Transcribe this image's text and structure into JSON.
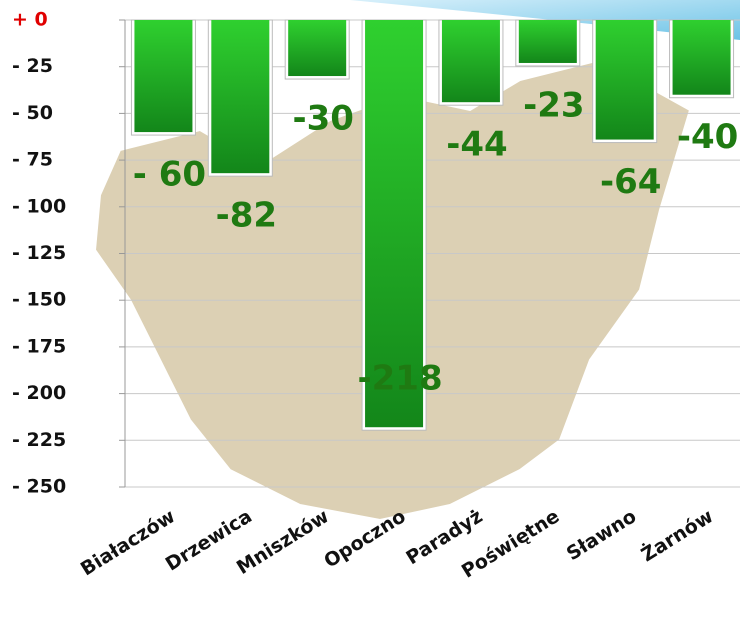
{
  "chart_data": {
    "type": "bar",
    "categories": [
      "Białaczów",
      "Drzewica",
      "Mniszków",
      "Opoczno",
      "Paradyż",
      "Poświętne",
      "Sławno",
      "Żarnów"
    ],
    "values": [
      -60,
      -82,
      -30,
      -218,
      -44,
      -23,
      -64,
      -40
    ],
    "value_labels": [
      "- 60",
      "-82",
      "-30",
      "-218",
      "-44",
      "-23",
      "-64",
      "-40"
    ],
    "color": "#22b822",
    "label_color": "#1f7a12",
    "zero_tick_color": "#e00000",
    "ylim": [
      -250,
      0
    ],
    "yticks": [
      {
        "value": 0,
        "label": "+ 0"
      },
      {
        "value": -25,
        "label": "- 25"
      },
      {
        "value": -50,
        "label": "- 50"
      },
      {
        "value": -75,
        "label": "- 75"
      },
      {
        "value": -100,
        "label": "- 100"
      },
      {
        "value": -125,
        "label": "- 125"
      },
      {
        "value": -150,
        "label": "- 150"
      },
      {
        "value": -175,
        "label": "- 175"
      },
      {
        "value": -200,
        "label": "- 200"
      },
      {
        "value": -225,
        "label": "- 225"
      },
      {
        "value": -250,
        "label": "- 250"
      }
    ],
    "grid": true
  }
}
